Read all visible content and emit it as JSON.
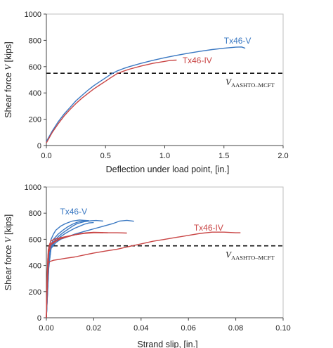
{
  "chart_data": [
    {
      "type": "line",
      "xlabel": "Deflection under load point, [in.]",
      "ylabel_prefix": "Shear force ",
      "ylabel_var": "V",
      "ylabel_suffix": " [kips]",
      "xlim": [
        0,
        2.0
      ],
      "ylim": [
        0,
        1000
      ],
      "xticks": [
        "0.0",
        "0.5",
        "1.0",
        "1.5",
        "2.0"
      ],
      "xtick_values": [
        0,
        0.5,
        1.0,
        1.5,
        2.0
      ],
      "yticks": [
        "0",
        "200",
        "400",
        "600",
        "800",
        "1000"
      ],
      "ytick_values": [
        0,
        200,
        400,
        600,
        800,
        1000
      ],
      "grid": false,
      "reference_line": {
        "value": 550,
        "label_main": "V",
        "label_sub": "AASHTO–MCFT",
        "style": "dashed"
      },
      "series": [
        {
          "name": "Tx46-V",
          "color": "#3a78c2",
          "label_at": [
            1.5,
            775
          ],
          "x": [
            0,
            0.05,
            0.1,
            0.15,
            0.2,
            0.25,
            0.3,
            0.35,
            0.4,
            0.45,
            0.5,
            0.55,
            0.6,
            0.65,
            0.7,
            0.8,
            0.9,
            1.0,
            1.1,
            1.2,
            1.3,
            1.4,
            1.5,
            1.6,
            1.65,
            1.68
          ],
          "y": [
            30,
            110,
            180,
            240,
            290,
            340,
            380,
            420,
            455,
            485,
            515,
            545,
            568,
            585,
            600,
            625,
            648,
            668,
            686,
            702,
            717,
            730,
            740,
            748,
            750,
            740
          ]
        },
        {
          "name": "Tx46-IV",
          "color": "#c94545",
          "label_at": [
            1.15,
            625
          ],
          "x": [
            0,
            0.05,
            0.1,
            0.15,
            0.2,
            0.25,
            0.3,
            0.35,
            0.4,
            0.45,
            0.5,
            0.55,
            0.6,
            0.65,
            0.7,
            0.8,
            0.9,
            1.0,
            1.05,
            1.1
          ],
          "y": [
            20,
            100,
            165,
            225,
            275,
            320,
            360,
            395,
            430,
            460,
            490,
            520,
            548,
            565,
            580,
            605,
            625,
            640,
            648,
            650
          ]
        }
      ]
    },
    {
      "type": "line",
      "xlabel": "Strand slip, [in.]",
      "ylabel_prefix": "Shear force ",
      "ylabel_var": "V",
      "ylabel_suffix": " [kips]",
      "xlim": [
        0,
        0.1
      ],
      "ylim": [
        0,
        1000
      ],
      "xticks": [
        "0.00",
        "0.02",
        "0.04",
        "0.06",
        "0.08",
        "0.10"
      ],
      "xtick_values": [
        0,
        0.02,
        0.04,
        0.06,
        0.08,
        0.1
      ],
      "yticks": [
        "0",
        "200",
        "400",
        "600",
        "800",
        "1000"
      ],
      "ytick_values": [
        0,
        200,
        400,
        600,
        800,
        1000
      ],
      "grid": false,
      "reference_line": {
        "value": 550,
        "label_main": "V",
        "label_sub": "AASHTO–MCFT",
        "style": "dashed"
      },
      "labels": [
        {
          "text": "Tx46-V",
          "color": "#3a78c2",
          "at": [
            0.0115,
            790
          ]
        },
        {
          "text": "Tx46-IV",
          "color": "#c94545",
          "at": [
            0.0685,
            668
          ]
        }
      ],
      "series": [
        {
          "group": "Tx46-V",
          "color": "#3a78c2",
          "x": [
            0,
            0.0005,
            0.001,
            0.0015,
            0.002,
            0.003,
            0.004,
            0.006,
            0.008,
            0.011,
            0.014,
            0.016,
            0.018
          ],
          "y": [
            0,
            300,
            500,
            560,
            600,
            640,
            670,
            700,
            720,
            740,
            748,
            745,
            743
          ]
        },
        {
          "group": "Tx46-V",
          "color": "#3a78c2",
          "x": [
            0,
            0.0008,
            0.0015,
            0.003,
            0.005,
            0.007,
            0.009,
            0.011,
            0.013,
            0.016,
            0.019,
            0.021,
            0.024
          ],
          "y": [
            0,
            350,
            520,
            580,
            620,
            650,
            675,
            700,
            720,
            735,
            742,
            744,
            740
          ]
        },
        {
          "group": "Tx46-V",
          "color": "#3a78c2",
          "x": [
            0,
            0.001,
            0.002,
            0.004,
            0.006,
            0.009,
            0.012,
            0.016,
            0.02,
            0.024,
            0.028,
            0.031,
            0.034,
            0.037
          ],
          "y": [
            0,
            400,
            530,
            575,
            600,
            620,
            640,
            660,
            680,
            700,
            720,
            740,
            745,
            738
          ]
        },
        {
          "group": "Tx46-V",
          "color": "#3a78c2",
          "x": [
            0,
            0.001,
            0.002,
            0.003,
            0.005,
            0.007,
            0.009,
            0.011,
            0.013,
            0.015,
            0.017
          ],
          "y": [
            0,
            420,
            560,
            600,
            640,
            670,
            695,
            715,
            730,
            740,
            742
          ]
        },
        {
          "group": "Tx46-V",
          "color": "#3a78c2",
          "x": [
            0,
            0.001,
            0.002,
            0.004,
            0.006,
            0.008,
            0.01,
            0.012,
            0.014,
            0.016,
            0.018,
            0.02
          ],
          "y": [
            0,
            380,
            540,
            590,
            620,
            645,
            665,
            685,
            700,
            715,
            725,
            728
          ]
        },
        {
          "group": "Tx46-IV",
          "color": "#c94545",
          "x": [
            0,
            0.0003,
            0.0006,
            0.001,
            0.0015,
            0.002,
            0.004,
            0.008,
            0.012,
            0.016,
            0.02,
            0.025,
            0.03,
            0.034
          ],
          "y": [
            0,
            250,
            450,
            540,
            570,
            590,
            605,
            620,
            635,
            645,
            650,
            650,
            650,
            648
          ]
        },
        {
          "group": "Tx46-IV",
          "color": "#c94545",
          "x": [
            0,
            0.0005,
            0.001,
            0.002,
            0.004,
            0.006,
            0.009,
            0.012,
            0.015,
            0.018,
            0.021,
            0.024
          ],
          "y": [
            0,
            300,
            500,
            560,
            585,
            605,
            620,
            635,
            645,
            650,
            652,
            650
          ]
        },
        {
          "group": "Tx46-IV",
          "color": "#c94545",
          "x": [
            0,
            0.0004,
            0.0008,
            0.0015,
            0.003,
            0.005,
            0.008,
            0.011,
            0.014,
            0.017,
            0.02,
            0.023,
            0.026
          ],
          "y": [
            0,
            350,
            520,
            560,
            580,
            600,
            615,
            630,
            642,
            650,
            653,
            652,
            650
          ]
        },
        {
          "group": "Tx46-IV",
          "color": "#c94545",
          "x": [
            0,
            0.0003,
            0.0007,
            0.0015,
            0.003,
            0.005,
            0.008,
            0.012,
            0.016,
            0.02,
            0.025,
            0.03,
            0.035,
            0.04,
            0.045,
            0.05,
            0.055,
            0.06,
            0.065,
            0.07,
            0.075,
            0.08,
            0.082
          ],
          "y": [
            0,
            300,
            420,
            430,
            440,
            445,
            455,
            465,
            480,
            495,
            510,
            525,
            545,
            565,
            585,
            600,
            615,
            630,
            645,
            655,
            655,
            650,
            650
          ]
        }
      ]
    }
  ]
}
